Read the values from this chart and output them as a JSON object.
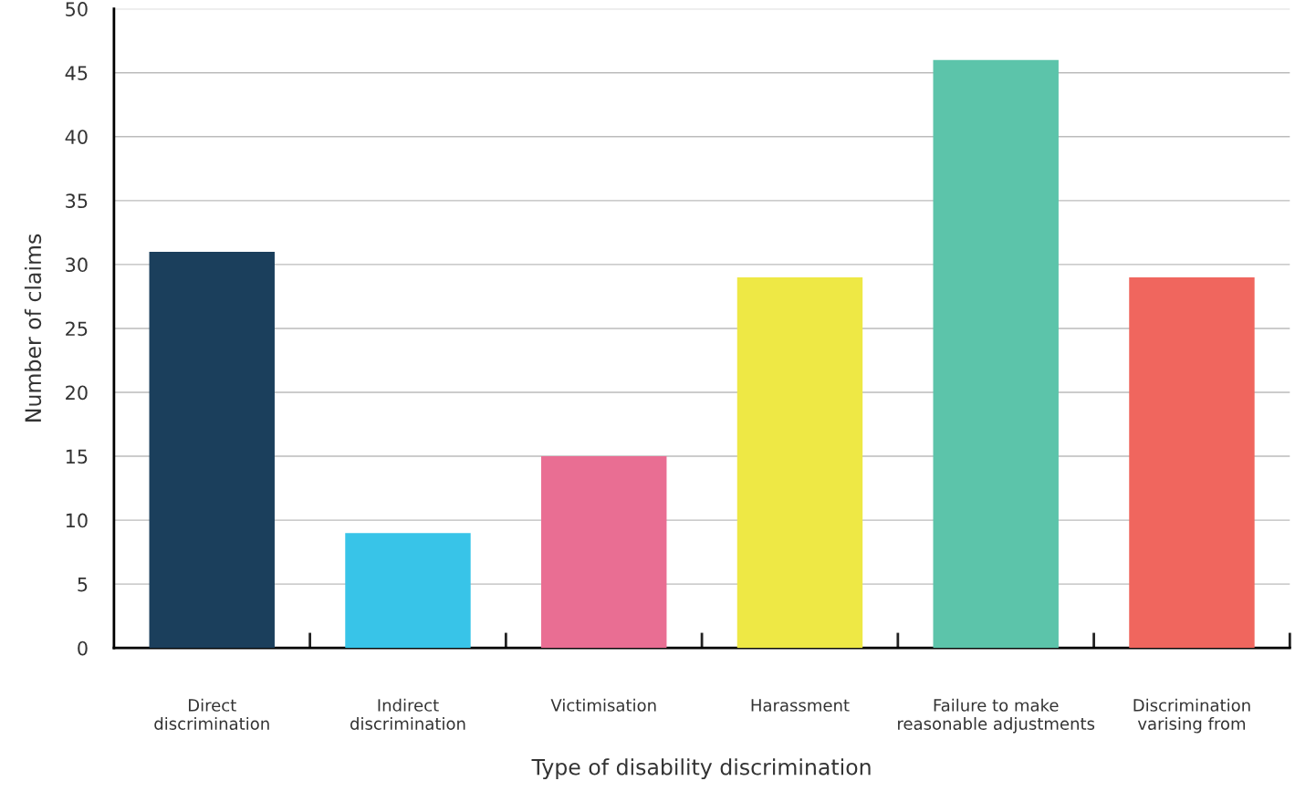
{
  "chart_data": {
    "type": "bar",
    "categories": [
      "Direct\ndiscrimination",
      "Indirect\ndiscrimination",
      "Victimisation",
      "Harassment",
      "Failure to make\nreasonable adjustments",
      "Discrimination\nvarising from"
    ],
    "values": [
      31,
      9,
      15,
      29,
      46,
      29
    ],
    "colors": [
      "#1b3f5c",
      "#38c4e8",
      "#e96e93",
      "#eee845",
      "#5cc4aa",
      "#f0665e"
    ],
    "xlabel": "Type of disability discrimination",
    "ylabel": "Number of claims",
    "ylim": [
      0,
      50
    ],
    "yticks": [
      0,
      5,
      10,
      15,
      20,
      25,
      30,
      35,
      40,
      45,
      50
    ],
    "grid": "y",
    "legend": false
  }
}
